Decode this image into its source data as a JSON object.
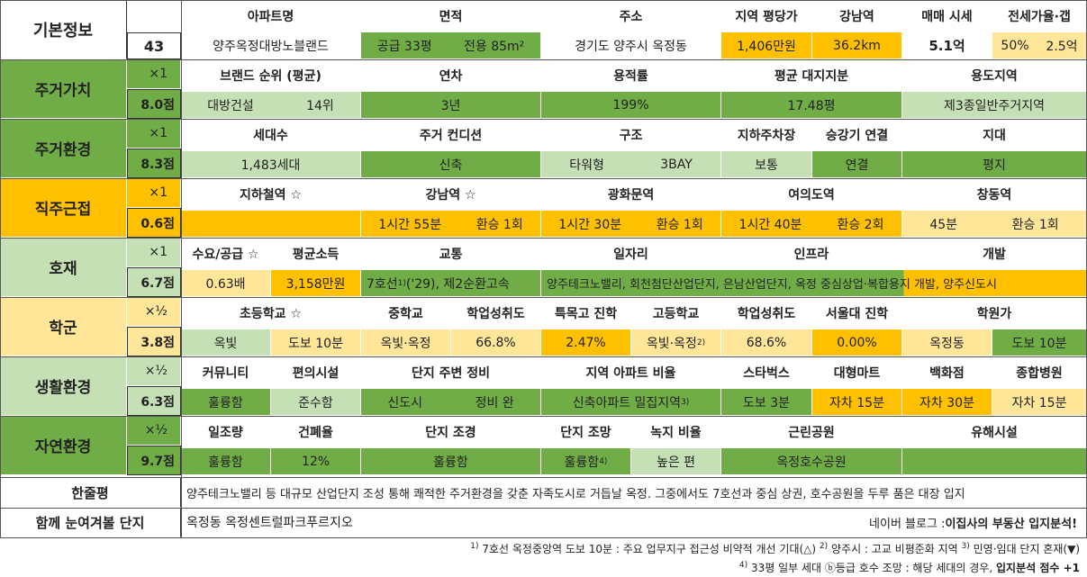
{
  "basic": {
    "label": "기본정보",
    "number": "43",
    "headers": [
      "아파트명",
      "면적",
      "주소",
      "지역 평당가",
      "강남역",
      "매매 시세",
      "전세가율·갭"
    ],
    "apt_name": "양주옥정대방노블랜드",
    "area_supply": "공급 33평",
    "area_exclusive": "전용 85m²",
    "address": "경기도 양주시 옥정동",
    "price_per_pyeong": "1,406만원",
    "gangnam_distance": "36.2km",
    "sale_price": "5.1억",
    "jeonse_ratio": "50%",
    "gap": "2.5억"
  },
  "rows": [
    {
      "category": "주거가치",
      "mult": "×1",
      "score": "8.0점",
      "headers": [
        "브랜드 순위 (평균)",
        "연차",
        "용적률",
        "평균 대지지분",
        "용도지역"
      ],
      "values": [
        "대방건설",
        "14위",
        "3년",
        "199%",
        "17.48평",
        "제3종일반주거지역"
      ]
    },
    {
      "category": "주거환경",
      "mult": "×1",
      "score": "8.3점",
      "headers": [
        "세대수",
        "주거 컨디션",
        "구조",
        "지하주차장",
        "승강기 연결",
        "지대"
      ],
      "values": [
        "1,483세대",
        "신축",
        "타워형",
        "3BAY",
        "보통",
        "연결",
        "평지"
      ]
    },
    {
      "category": "직주근접",
      "mult": "×1",
      "score": "0.6점",
      "headers": [
        "지하철역 ☆",
        "강남역 ☆",
        "광화문역",
        "여의도역",
        "창동역"
      ],
      "values": [
        "",
        "1시간 55분",
        "환승 1회",
        "1시간 30분",
        "환승 1회",
        "1시간 40분",
        "환승 2회",
        "45분",
        "환승 1회"
      ]
    },
    {
      "category": "호재",
      "mult": "×1",
      "score": "6.7점",
      "headers": [
        "수요/공급 ☆",
        "평균소득",
        "교통",
        "일자리",
        "인프라",
        "개발"
      ],
      "values": [
        "0.63배",
        "3,158만원",
        "7호선",
        "('29), 제2순환고속",
        "양주테크노밸리, 회천첨단산업단지, 은남산업단지, 옥정 중심상업·복합용지 개발, 양주신도시"
      ]
    },
    {
      "category": "학군",
      "mult": "×½",
      "score": "3.8점",
      "headers": [
        "초등학교 ☆",
        "중학교",
        "학업성취도",
        "특목고 진학",
        "고등학교",
        "학업성취도",
        "서울대 진학",
        "학원가"
      ],
      "values": [
        "옥빛",
        "도보 10분",
        "옥빛·옥정",
        "66.8%",
        "2.47%",
        "옥빛·옥정",
        "68.6%",
        "0.00%",
        "옥정동",
        "도보 10분"
      ]
    },
    {
      "category": "생활환경",
      "mult": "×½",
      "score": "6.3점",
      "headers": [
        "커뮤니티",
        "편의시설",
        "단지 주변 정비",
        "지역 아파트 비율",
        "스타벅스",
        "대형마트",
        "백화점",
        "종합병원"
      ],
      "values": [
        "훌륭함",
        "준수함",
        "신도시",
        "정비 완",
        "신축아파트 밀집지역",
        "도보 3분",
        "자차 15분",
        "자차 30분",
        "자차 15분"
      ]
    },
    {
      "category": "자연환경",
      "mult": "×½",
      "score": "9.7점",
      "headers": [
        "일조량",
        "건폐율",
        "단지 조경",
        "단지 조망",
        "녹지 비율",
        "근린공원",
        "유해시설"
      ],
      "values": [
        "훌륭함",
        "12%",
        "훌륭함",
        "훌륭함",
        "높은 편",
        "옥정호수공원",
        ""
      ]
    }
  ],
  "summary": {
    "label": "한줄평",
    "text": "양주테크노밸리 등 대규모 산업단지 조성 통해 쾌적한 주거환경을 갖춘 자족도시로 거듭날 옥정. 그중에서도 7호선과 중심 상권, 호수공원을 두루 품은 대장 입지"
  },
  "together": {
    "label": "함께 눈여겨볼 단지",
    "text": "옥정동 옥정센트럴파크푸르지오",
    "blog_prefix": "네이버 블로그 : ",
    "blog_name": "이집사의 부동산 입지분석!"
  },
  "footnotes": {
    "line1_a": "7호선 옥정중앙역 도보 10분 : 주요 업무지구 접근성 비약적 개선 기대(△)",
    "line1_b": "양주시 : 고교 비평준화 지역",
    "line1_c": "민영·임대 단지 혼재(▼)",
    "line2_a": "33평 일부 세대 ⓑ등급 호수 조망 : 해당 세대의 경우,",
    "line2_b": "입지분석 점수 +1"
  },
  "colors": {
    "dark_green": "#70ad47",
    "light_green": "#c5e0b4",
    "orange": "#ffc000",
    "light_yellow": "#ffe699"
  }
}
